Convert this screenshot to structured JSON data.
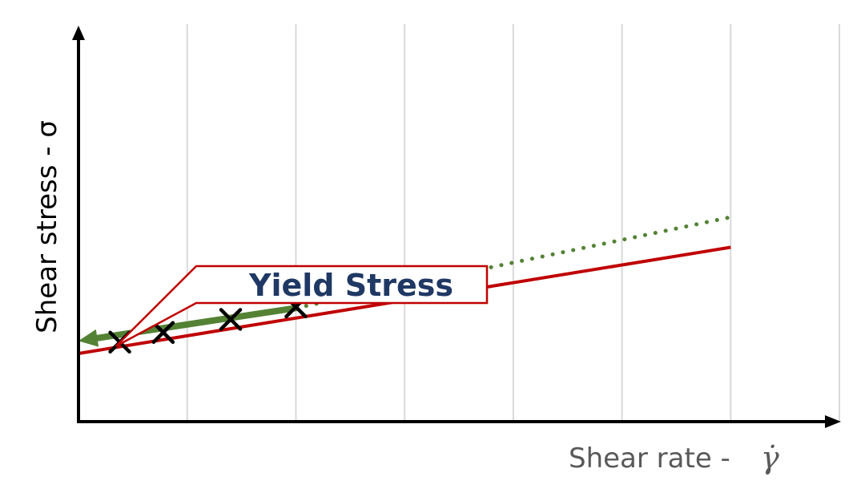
{
  "chart_data": {
    "type": "line",
    "title": "",
    "xlabel": "Shear rate -",
    "xlabel_symbol": "γ̇",
    "ylabel": "Shear stress - σ",
    "xlim": [
      0,
      7
    ],
    "ylim": [
      0,
      7
    ],
    "grid": "vertical",
    "series": [
      {
        "style": "solid",
        "color": "#C00000",
        "x": [
          0,
          6
        ],
        "y": [
          1.2,
          3.07
        ]
      },
      {
        "style": "solid",
        "color": "#548235",
        "x": [
          0.1,
          2
        ],
        "y": [
          1.45,
          2.0
        ]
      },
      {
        "style": "dotted",
        "color": "#548235",
        "x": [
          2,
          6
        ],
        "y": [
          2.0,
          3.6
        ]
      },
      {
        "style": "marker-x",
        "color": "#000000",
        "x": [
          0.38,
          0.78,
          1.4,
          2.0
        ],
        "y": [
          1.4,
          1.57,
          1.8,
          2.02
        ]
      }
    ],
    "annotations": [
      {
        "text": "Yield Stress",
        "color": "#1F3864",
        "border_color": "#C00000",
        "points_to": [
          0.05,
          1.3
        ]
      }
    ]
  }
}
